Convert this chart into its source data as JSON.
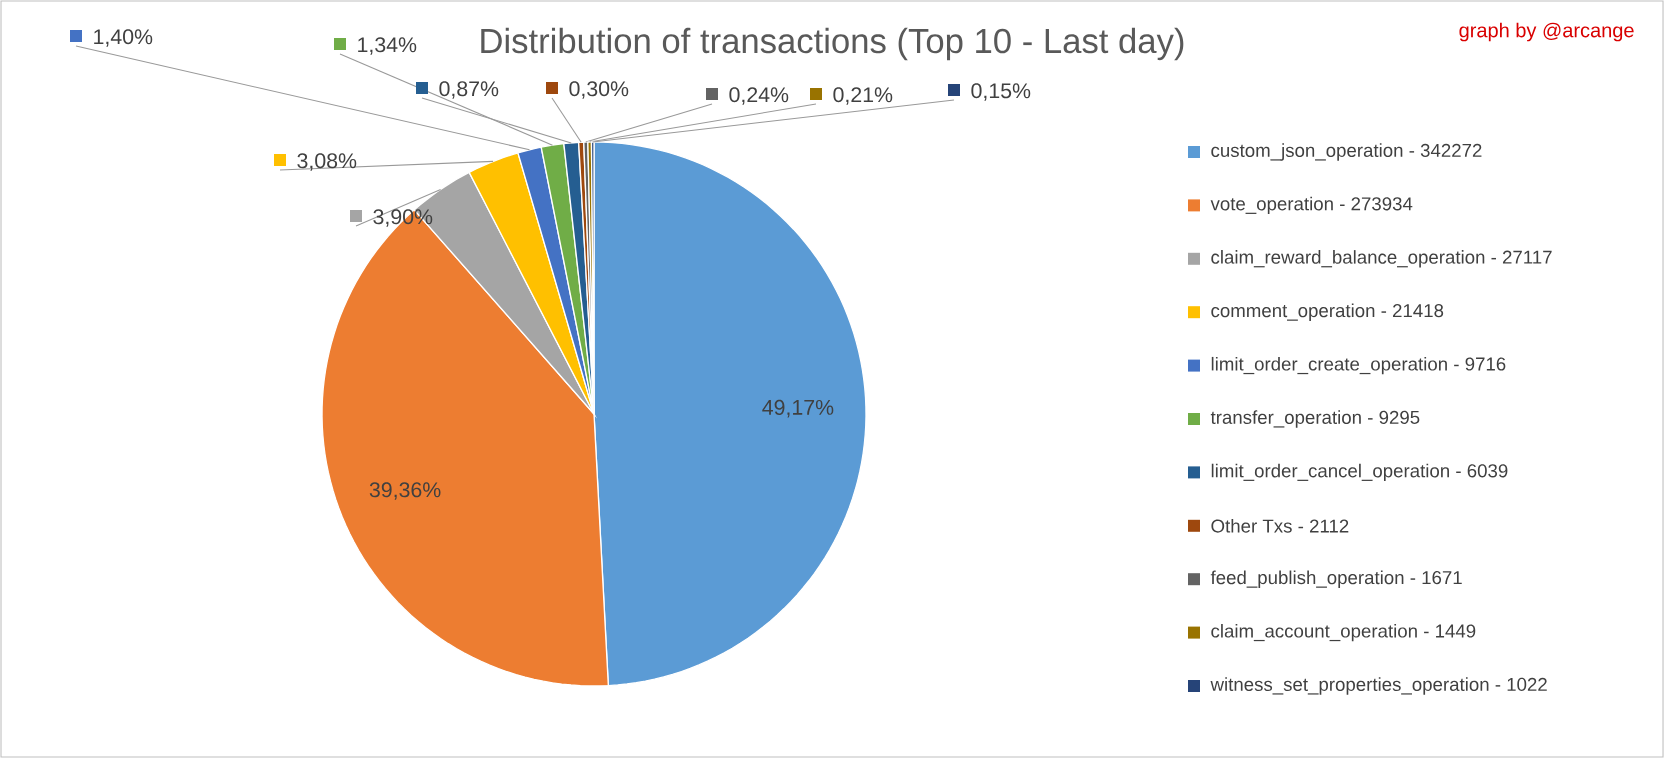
{
  "chart_data": {
    "type": "pie",
    "title": "Distribution of transactions (Top 10 - Last day)",
    "categories": [
      "custom_json_operation - 342272",
      "vote_operation - 273934",
      "claim_reward_balance_operation - 27117",
      "comment_operation - 21418",
      "limit_order_create_operation - 9716",
      "transfer_operation - 9295",
      "limit_order_cancel_operation - 6039",
      "Other Txs - 2112",
      "feed_publish_operation - 1671",
      "claim_account_operation - 1449",
      "witness_set_properties_operation - 1022"
    ],
    "values": [
      49.17,
      39.36,
      3.9,
      3.08,
      1.4,
      1.34,
      0.87,
      0.3,
      0.24,
      0.21,
      0.15
    ],
    "value_labels": [
      "49,17%",
      "39,36%",
      "3,90%",
      "3,08%",
      "1,40%",
      "1,34%",
      "0,87%",
      "0,30%",
      "0,24%",
      "0,21%",
      "0,15%"
    ],
    "colors": [
      "#5b9bd5",
      "#ed7d31",
      "#a5a5a5",
      "#ffc000",
      "#4472c4",
      "#70ad47",
      "#255e91",
      "#9e480e",
      "#636363",
      "#997300",
      "#264478"
    ],
    "legend": "right",
    "annotations": [
      "graph by @arcange"
    ]
  }
}
